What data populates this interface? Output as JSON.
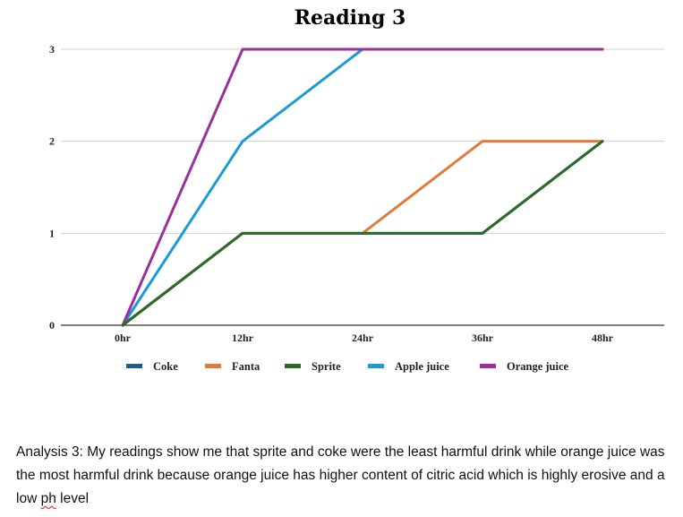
{
  "chart_data": {
    "type": "line",
    "title": "Reading 3",
    "xlabel": "",
    "ylabel": "",
    "categories": [
      "0hr",
      "12hr",
      "24hr",
      "36hr",
      "48hr"
    ],
    "yticks": [
      "0",
      "1",
      "2",
      "3"
    ],
    "ylim": [
      0,
      3
    ],
    "grid": true,
    "legend_position": "bottom",
    "series": [
      {
        "name": "Coke",
        "color": "#1f5c8b",
        "values": [
          0,
          1,
          1,
          1,
          2
        ]
      },
      {
        "name": "Fanta",
        "color": "#e07b39",
        "values": [
          0,
          1,
          1,
          2,
          2
        ]
      },
      {
        "name": "Sprite",
        "color": "#2a6a2a",
        "values": [
          0,
          1,
          1,
          1,
          2
        ]
      },
      {
        "name": "Apple juice",
        "color": "#1a9ad6",
        "values": [
          0,
          2,
          3,
          3,
          3
        ]
      },
      {
        "name": "Orange juice",
        "color": "#9b2f9b",
        "values": [
          0,
          3,
          3,
          3,
          3
        ]
      }
    ]
  },
  "analysis": {
    "text_before": "Analysis 3: My readings show me that sprite and coke were the least harmful drink while orange juice was the most harmful drink because orange juice has higher content of citric acid which is highly erosive and a low ",
    "flagged_word": "ph",
    "text_after": " level"
  }
}
